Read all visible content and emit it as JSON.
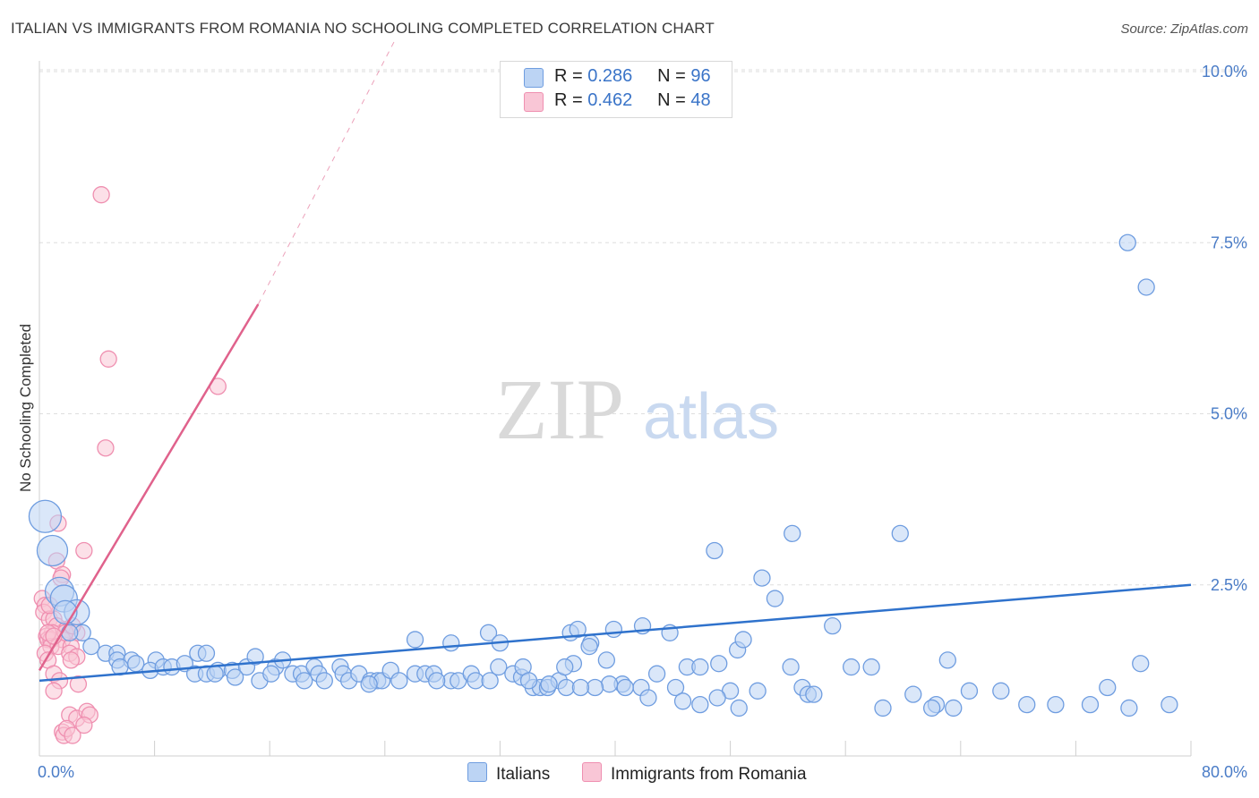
{
  "title": "ITALIAN VS IMMIGRANTS FROM ROMANIA NO SCHOOLING COMPLETED CORRELATION CHART",
  "source": "Source: ZipAtlas.com",
  "watermark": {
    "zip": "ZIP",
    "atlas": "atlas"
  },
  "legend": {
    "r_label": "R =",
    "n_label": "N =",
    "series": [
      {
        "name": "Italians",
        "r": "0.286",
        "n": "96"
      },
      {
        "name": "Immigrants from Romania",
        "r": "0.462",
        "n": "48"
      }
    ]
  },
  "colors": {
    "italians_fill": "#bcd4f4",
    "italians_stroke": "#6f9de0",
    "italians_line": "#2f72cc",
    "romania_fill": "#f9c6d6",
    "romania_stroke": "#ef8fb0",
    "romania_line": "#e0628c",
    "grid": "#dedede",
    "axis_text": "#4a7cc7"
  },
  "chart_data": {
    "type": "scatter",
    "title": "ITALIAN VS IMMIGRANTS FROM ROMANIA NO SCHOOLING COMPLETED CORRELATION CHART",
    "xlabel": "",
    "ylabel": "No Schooling Completed",
    "xlim": [
      0,
      80
    ],
    "ylim": [
      0,
      10.5
    ],
    "x_tick_labels": {
      "min": "0.0%",
      "max": "80.0%"
    },
    "y_ticks": [
      {
        "value": 2.5,
        "label": "2.5%"
      },
      {
        "value": 5.0,
        "label": "5.0%"
      },
      {
        "value": 7.5,
        "label": "7.5%"
      },
      {
        "value": 10.0,
        "label": "10.0%"
      }
    ],
    "grid": true,
    "series": [
      {
        "name": "Italians",
        "points": [
          [
            0.4,
            3.5
          ],
          [
            0.9,
            3.0
          ],
          [
            1.4,
            2.4
          ],
          [
            1.7,
            2.3
          ],
          [
            2.6,
            2.1
          ],
          [
            1.8,
            2.1
          ],
          [
            3.0,
            1.8
          ],
          [
            2.1,
            1.8
          ],
          [
            3.6,
            1.6
          ],
          [
            4.6,
            1.5
          ],
          [
            5.4,
            1.5
          ],
          [
            5.4,
            1.4
          ],
          [
            6.4,
            1.4
          ],
          [
            8.1,
            1.4
          ],
          [
            5.6,
            1.3
          ],
          [
            6.7,
            1.35
          ],
          [
            7.7,
            1.25
          ],
          [
            8.6,
            1.3
          ],
          [
            9.2,
            1.3
          ],
          [
            10.1,
            1.35
          ],
          [
            11.0,
            1.5
          ],
          [
            11.6,
            1.5
          ],
          [
            10.8,
            1.2
          ],
          [
            11.6,
            1.2
          ],
          [
            12.4,
            1.25
          ],
          [
            12.2,
            1.2
          ],
          [
            13.4,
            1.25
          ],
          [
            14.4,
            1.3
          ],
          [
            13.6,
            1.15
          ],
          [
            15.0,
            1.45
          ],
          [
            16.4,
            1.3
          ],
          [
            16.9,
            1.4
          ],
          [
            15.3,
            1.1
          ],
          [
            16.1,
            1.2
          ],
          [
            17.6,
            1.2
          ],
          [
            18.2,
            1.2
          ],
          [
            18.4,
            1.1
          ],
          [
            19.1,
            1.3
          ],
          [
            19.4,
            1.2
          ],
          [
            19.8,
            1.1
          ],
          [
            20.9,
            1.3
          ],
          [
            21.1,
            1.2
          ],
          [
            21.5,
            1.1
          ],
          [
            22.2,
            1.2
          ],
          [
            23.0,
            1.1
          ],
          [
            23.5,
            1.1
          ],
          [
            23.8,
            1.1
          ],
          [
            24.4,
            1.25
          ],
          [
            25.0,
            1.1
          ],
          [
            22.9,
            1.05
          ],
          [
            26.1,
            1.2
          ],
          [
            26.8,
            1.2
          ],
          [
            27.4,
            1.2
          ],
          [
            28.6,
            1.1
          ],
          [
            29.1,
            1.1
          ],
          [
            30.0,
            1.2
          ],
          [
            30.3,
            1.1
          ],
          [
            31.3,
            1.1
          ],
          [
            31.9,
            1.3
          ],
          [
            32.9,
            1.2
          ],
          [
            27.6,
            1.1
          ],
          [
            33.5,
            1.15
          ],
          [
            34.3,
            1.0
          ],
          [
            34.8,
            1.0
          ],
          [
            35.3,
            1.0
          ],
          [
            36.1,
            1.1
          ],
          [
            36.6,
            1.0
          ],
          [
            26.1,
            1.7
          ],
          [
            28.6,
            1.65
          ],
          [
            31.2,
            1.8
          ],
          [
            32.0,
            1.65
          ],
          [
            33.6,
            1.3
          ],
          [
            34.0,
            1.1
          ],
          [
            35.4,
            1.05
          ],
          [
            36.9,
            1.8
          ],
          [
            37.4,
            1.85
          ],
          [
            38.3,
            1.65
          ],
          [
            39.4,
            1.4
          ],
          [
            40.5,
            1.05
          ],
          [
            41.8,
            1.0
          ],
          [
            42.9,
            1.2
          ],
          [
            44.2,
            1.0
          ],
          [
            45.0,
            1.3
          ],
          [
            47.2,
            1.35
          ],
          [
            48.5,
            1.55
          ],
          [
            48.0,
            0.95
          ],
          [
            46.9,
            3.0
          ],
          [
            48.9,
            1.7
          ],
          [
            50.2,
            2.6
          ],
          [
            52.2,
            1.3
          ],
          [
            53.0,
            1.0
          ],
          [
            53.4,
            0.9
          ],
          [
            55.1,
            1.9
          ],
          [
            56.4,
            1.3
          ],
          [
            57.8,
            1.3
          ],
          [
            58.6,
            0.7
          ],
          [
            60.7,
            0.9
          ],
          [
            62.3,
            0.75
          ],
          [
            63.1,
            1.4
          ],
          [
            68.6,
            0.75
          ],
          [
            70.6,
            0.75
          ],
          [
            73.0,
            0.75
          ],
          [
            74.2,
            1.0
          ],
          [
            75.7,
            0.7
          ],
          [
            76.5,
            1.35
          ],
          [
            78.5,
            0.75
          ],
          [
            45.9,
            1.3
          ],
          [
            49.9,
            0.95
          ],
          [
            52.3,
            3.25
          ],
          [
            59.8,
            3.25
          ],
          [
            63.5,
            0.7
          ],
          [
            75.6,
            7.5
          ],
          [
            76.9,
            6.85
          ],
          [
            51.1,
            2.3
          ],
          [
            43.8,
            1.8
          ],
          [
            41.9,
            1.9
          ],
          [
            39.9,
            1.85
          ],
          [
            38.2,
            1.6
          ],
          [
            37.1,
            1.35
          ],
          [
            48.6,
            0.7
          ],
          [
            47.1,
            0.85
          ],
          [
            45.9,
            0.75
          ],
          [
            44.7,
            0.8
          ],
          [
            42.3,
            0.85
          ],
          [
            40.7,
            1.0
          ],
          [
            39.6,
            1.05
          ],
          [
            38.6,
            1.0
          ],
          [
            37.6,
            1.0
          ],
          [
            36.5,
            1.3
          ],
          [
            53.8,
            0.9
          ],
          [
            66.8,
            0.95
          ],
          [
            64.6,
            0.95
          ],
          [
            62.0,
            0.7
          ]
        ],
        "trend": {
          "x": [
            0,
            80
          ],
          "y": [
            1.1,
            2.5
          ]
        }
      },
      {
        "name": "Immigrants from Romania",
        "points": [
          [
            4.3,
            8.2
          ],
          [
            4.8,
            5.8
          ],
          [
            12.4,
            5.4
          ],
          [
            4.6,
            4.5
          ],
          [
            1.3,
            3.4
          ],
          [
            3.1,
            3.0
          ],
          [
            1.2,
            2.85
          ],
          [
            1.6,
            2.65
          ],
          [
            1.5,
            2.6
          ],
          [
            0.2,
            2.3
          ],
          [
            0.4,
            2.2
          ],
          [
            0.3,
            2.1
          ],
          [
            0.7,
            2.0
          ],
          [
            1.0,
            2.0
          ],
          [
            1.2,
            1.9
          ],
          [
            0.9,
            1.8
          ],
          [
            1.9,
            1.85
          ],
          [
            2.6,
            1.8
          ],
          [
            1.6,
            1.7
          ],
          [
            0.5,
            1.75
          ],
          [
            0.6,
            1.7
          ],
          [
            0.8,
            1.7
          ],
          [
            0.8,
            1.6
          ],
          [
            1.3,
            1.6
          ],
          [
            2.2,
            1.6
          ],
          [
            0.4,
            1.5
          ],
          [
            1.8,
            1.8
          ],
          [
            2.3,
            1.9
          ],
          [
            0.6,
            1.8
          ],
          [
            1.0,
            1.75
          ],
          [
            2.1,
            1.5
          ],
          [
            2.6,
            1.45
          ],
          [
            0.6,
            1.4
          ],
          [
            1.0,
            1.2
          ],
          [
            2.2,
            1.4
          ],
          [
            1.4,
            1.1
          ],
          [
            1.0,
            0.95
          ],
          [
            2.7,
            1.05
          ],
          [
            1.6,
            0.35
          ],
          [
            1.7,
            0.3
          ],
          [
            2.1,
            0.6
          ],
          [
            2.6,
            0.55
          ],
          [
            3.3,
            0.65
          ],
          [
            3.5,
            0.6
          ],
          [
            1.9,
            0.4
          ],
          [
            2.3,
            0.3
          ],
          [
            3.1,
            0.45
          ],
          [
            0.7,
            2.2
          ]
        ],
        "trend": {
          "x": [
            0,
            15.2
          ],
          "y": [
            1.25,
            6.6
          ]
        },
        "trend_extension": {
          "x": [
            15.2,
            24.8
          ],
          "y": [
            6.6,
            10.5
          ]
        }
      }
    ]
  }
}
